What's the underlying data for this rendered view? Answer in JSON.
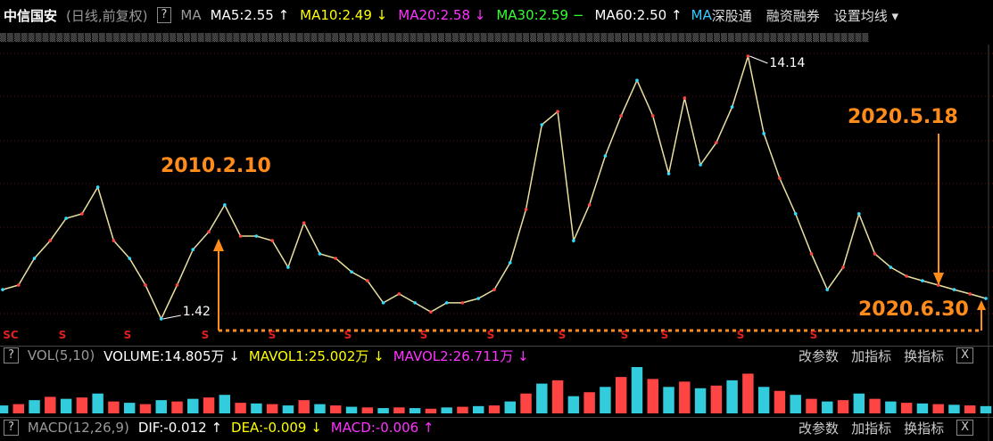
{
  "toolbar": {
    "stock_name": "中信国安",
    "mode": "(日线,前复权)",
    "help": "?",
    "ma_label": "MA",
    "ma_values": [
      {
        "text": "MA5:2.55 ↑",
        "color": "#ffffff"
      },
      {
        "text": "MA10:2.49 ↓",
        "color": "#ffff00"
      },
      {
        "text": "MA20:2.58 ↓",
        "color": "#ff33ff"
      },
      {
        "text": "MA30:2.59 −",
        "color": "#33ff33"
      },
      {
        "text": "MA60:2.50 ↑",
        "color": "#ffffff"
      }
    ],
    "ma_tag": "MA",
    "buttons": [
      "深股通",
      "融资融券",
      "设置均线 ▾"
    ]
  },
  "price_chart": {
    "low_label": 1.42,
    "high_label": 14.14,
    "annotations": [
      "2010.2.10",
      "2020.5.18",
      "2020.6.30"
    ],
    "signals": [
      "SC",
      "S",
      "S",
      "S",
      "S",
      "S",
      "S",
      "S",
      "S",
      "S",
      "S",
      "S",
      "S"
    ],
    "prices": [
      2.84,
      3.06,
      4.35,
      5.21,
      6.29,
      6.51,
      7.8,
      5.21,
      4.35,
      3.06,
      1.42,
      3.06,
      4.78,
      5.64,
      6.94,
      5.43,
      5.43,
      5.21,
      3.92,
      6.07,
      4.57,
      4.35,
      3.7,
      3.27,
      2.2,
      2.63,
      2.2,
      1.76,
      2.2,
      2.2,
      2.41,
      2.84,
      4.14,
      6.72,
      10.82,
      11.46,
      5.21,
      6.94,
      9.31,
      11.25,
      12.97,
      11.25,
      8.45,
      12.11,
      8.88,
      9.95,
      11.68,
      14.14,
      10.39,
      8.23,
      6.51,
      4.57,
      2.84,
      3.92,
      6.51,
      4.57,
      3.92,
      3.49,
      3.27,
      3.06,
      2.84,
      2.63,
      2.41
    ]
  },
  "volume_panel": {
    "help": "?",
    "name": "VOL(5,10)",
    "items": [
      {
        "text": "VOLUME:14.805万 ↓",
        "color": "#ffffff"
      },
      {
        "text": "MAVOL1:25.002万 ↓",
        "color": "#ffff00"
      },
      {
        "text": "MAVOL2:26.711万 ↓",
        "color": "#ff33ff"
      }
    ],
    "buttons": [
      "改参数",
      "加指标",
      "换指标"
    ],
    "close": "X",
    "volumes": [
      12,
      14,
      20,
      25,
      22,
      24,
      30,
      18,
      16,
      14,
      20,
      18,
      22,
      24,
      28,
      16,
      15,
      14,
      12,
      20,
      14,
      12,
      10,
      9,
      8,
      9,
      8,
      7,
      9,
      10,
      11,
      12,
      18,
      30,
      45,
      50,
      26,
      32,
      40,
      55,
      70,
      52,
      40,
      48,
      38,
      42,
      50,
      60,
      40,
      34,
      28,
      22,
      18,
      20,
      30,
      22,
      18,
      16,
      15,
      14,
      13,
      12,
      11
    ]
  },
  "macd_panel": {
    "help": "?",
    "name": "MACD(12,26,9)",
    "items": [
      {
        "text": "DIF:-0.012 ↑",
        "color": "#ffffff"
      },
      {
        "text": "DEA:-0.009 ↓",
        "color": "#ffff00"
      },
      {
        "text": "MACD:-0.006 ↑",
        "color": "#ff33ff"
      }
    ],
    "buttons": [
      "改参数",
      "加指标",
      "换指标"
    ],
    "close": "X"
  }
}
